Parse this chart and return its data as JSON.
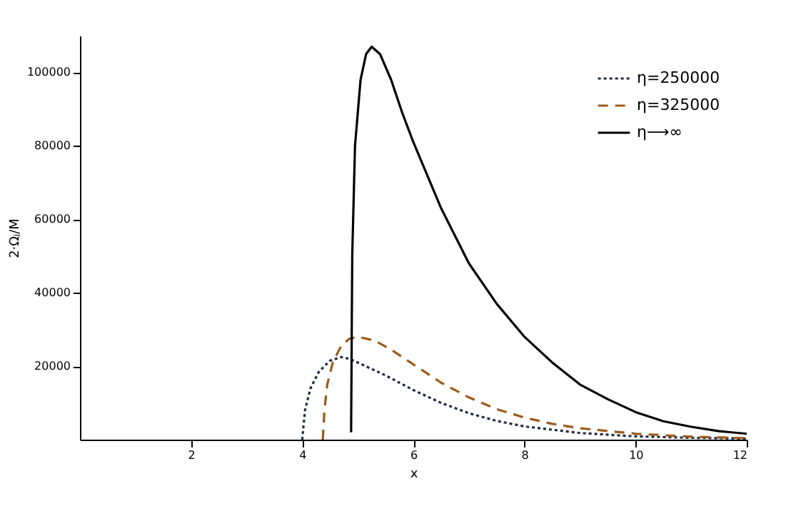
{
  "chart_data": {
    "type": "line",
    "xlabel": "x",
    "ylabel": "2·Ωⱼ/M",
    "xlim": [
      0,
      12
    ],
    "ylim": [
      0,
      110000
    ],
    "xticks": [
      2,
      4,
      6,
      8,
      10,
      12
    ],
    "yticks": [
      20000,
      40000,
      60000,
      80000,
      100000
    ],
    "grid": false,
    "legend": "top right",
    "marker": "none",
    "series": [
      {
        "name": "η=250000",
        "color": "#1f2a44",
        "line_style": "dotted",
        "x": [
          4.0,
          4.05,
          4.15,
          4.3,
          4.5,
          4.7,
          4.85,
          5.0,
          5.5,
          6.0,
          6.5,
          7.0,
          7.5,
          8.0,
          9.0,
          10.0,
          11.0,
          12.0
        ],
        "values": [
          0,
          8000,
          14000,
          18500,
          21500,
          22500,
          22000,
          21000,
          17500,
          13500,
          10000,
          7200,
          5100,
          3600,
          1800,
          900,
          500,
          300
        ]
      },
      {
        "name": "η=325000",
        "color": "#9c5a1a",
        "line_style": "dashed",
        "x": [
          4.37,
          4.4,
          4.45,
          4.55,
          4.7,
          4.85,
          5.0,
          5.3,
          5.6,
          6.0,
          6.5,
          7.0,
          7.5,
          8.0,
          8.5,
          9.0,
          10.0,
          11.0,
          12.0
        ],
        "values": [
          0,
          8000,
          15000,
          21000,
          25500,
          27500,
          28000,
          27000,
          24500,
          20500,
          15500,
          11500,
          8300,
          6000,
          4300,
          3100,
          1600,
          800,
          400
        ]
      },
      {
        "name": "η⟶∞",
        "color": "#000000",
        "line_style": "solid",
        "x": [
          4.88,
          4.9,
          4.95,
          5.05,
          5.15,
          5.25,
          5.4,
          5.6,
          5.8,
          6.0,
          6.5,
          7.0,
          7.5,
          8.0,
          8.5,
          9.0,
          9.5,
          10.0,
          10.5,
          11.0,
          11.5,
          12.0
        ],
        "values": [
          2000,
          50000,
          80000,
          98000,
          105000,
          107000,
          105000,
          98000,
          89000,
          81000,
          63000,
          48000,
          37000,
          28000,
          21000,
          15000,
          11000,
          7500,
          5000,
          3500,
          2300,
          1600
        ]
      }
    ]
  }
}
